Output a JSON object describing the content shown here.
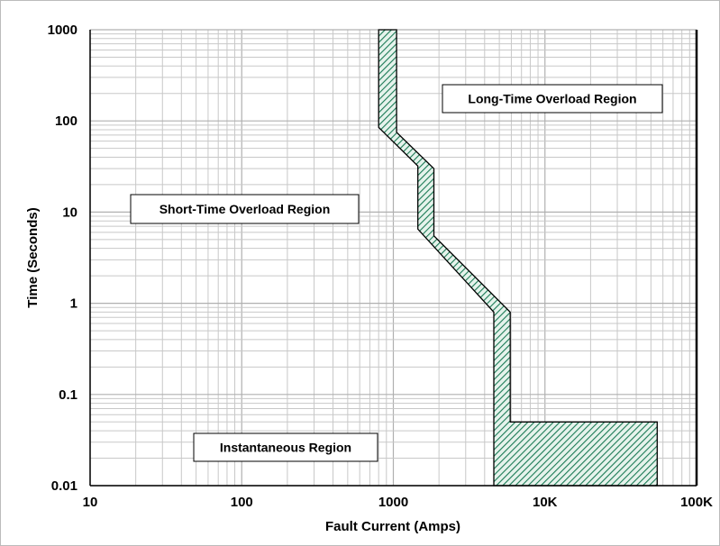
{
  "chart_data": {
    "type": "area",
    "xlabel": "Fault Current (Amps)",
    "ylabel": "Time (Seconds)",
    "x_scale": "log",
    "y_scale": "log",
    "xlim": [
      10,
      100000
    ],
    "ylim": [
      0.01,
      1000
    ],
    "grid": true,
    "x_ticks": [
      {
        "value": 10,
        "label": "10"
      },
      {
        "value": 100,
        "label": "100"
      },
      {
        "value": 1000,
        "label": "1000"
      },
      {
        "value": 10000,
        "label": "10K"
      },
      {
        "value": 100000,
        "label": "100K"
      }
    ],
    "y_ticks": [
      {
        "value": 1000,
        "label": "1000"
      },
      {
        "value": 100,
        "label": "100"
      },
      {
        "value": 10,
        "label": "10"
      },
      {
        "value": 1,
        "label": "1"
      },
      {
        "value": 0.1,
        "label": "0.1"
      },
      {
        "value": 0.01,
        "label": "0.01"
      }
    ],
    "trip_band": {
      "color": "#1a7a55",
      "polygon": [
        [
          800,
          1000
        ],
        [
          1050,
          1000
        ],
        [
          1050,
          75
        ],
        [
          1850,
          30
        ],
        [
          1850,
          5.5
        ],
        [
          5900,
          0.8
        ],
        [
          5900,
          0.05
        ],
        [
          55000,
          0.05
        ],
        [
          55000,
          0.01
        ],
        [
          4600,
          0.01
        ],
        [
          4600,
          0.8
        ],
        [
          1450,
          6.5
        ],
        [
          1450,
          32
        ],
        [
          800,
          85
        ]
      ]
    },
    "regions": [
      {
        "label": "Long-Time Overload Region"
      },
      {
        "label": "Short-Time Overload Region"
      },
      {
        "label": "Instantaneous Region"
      }
    ]
  }
}
